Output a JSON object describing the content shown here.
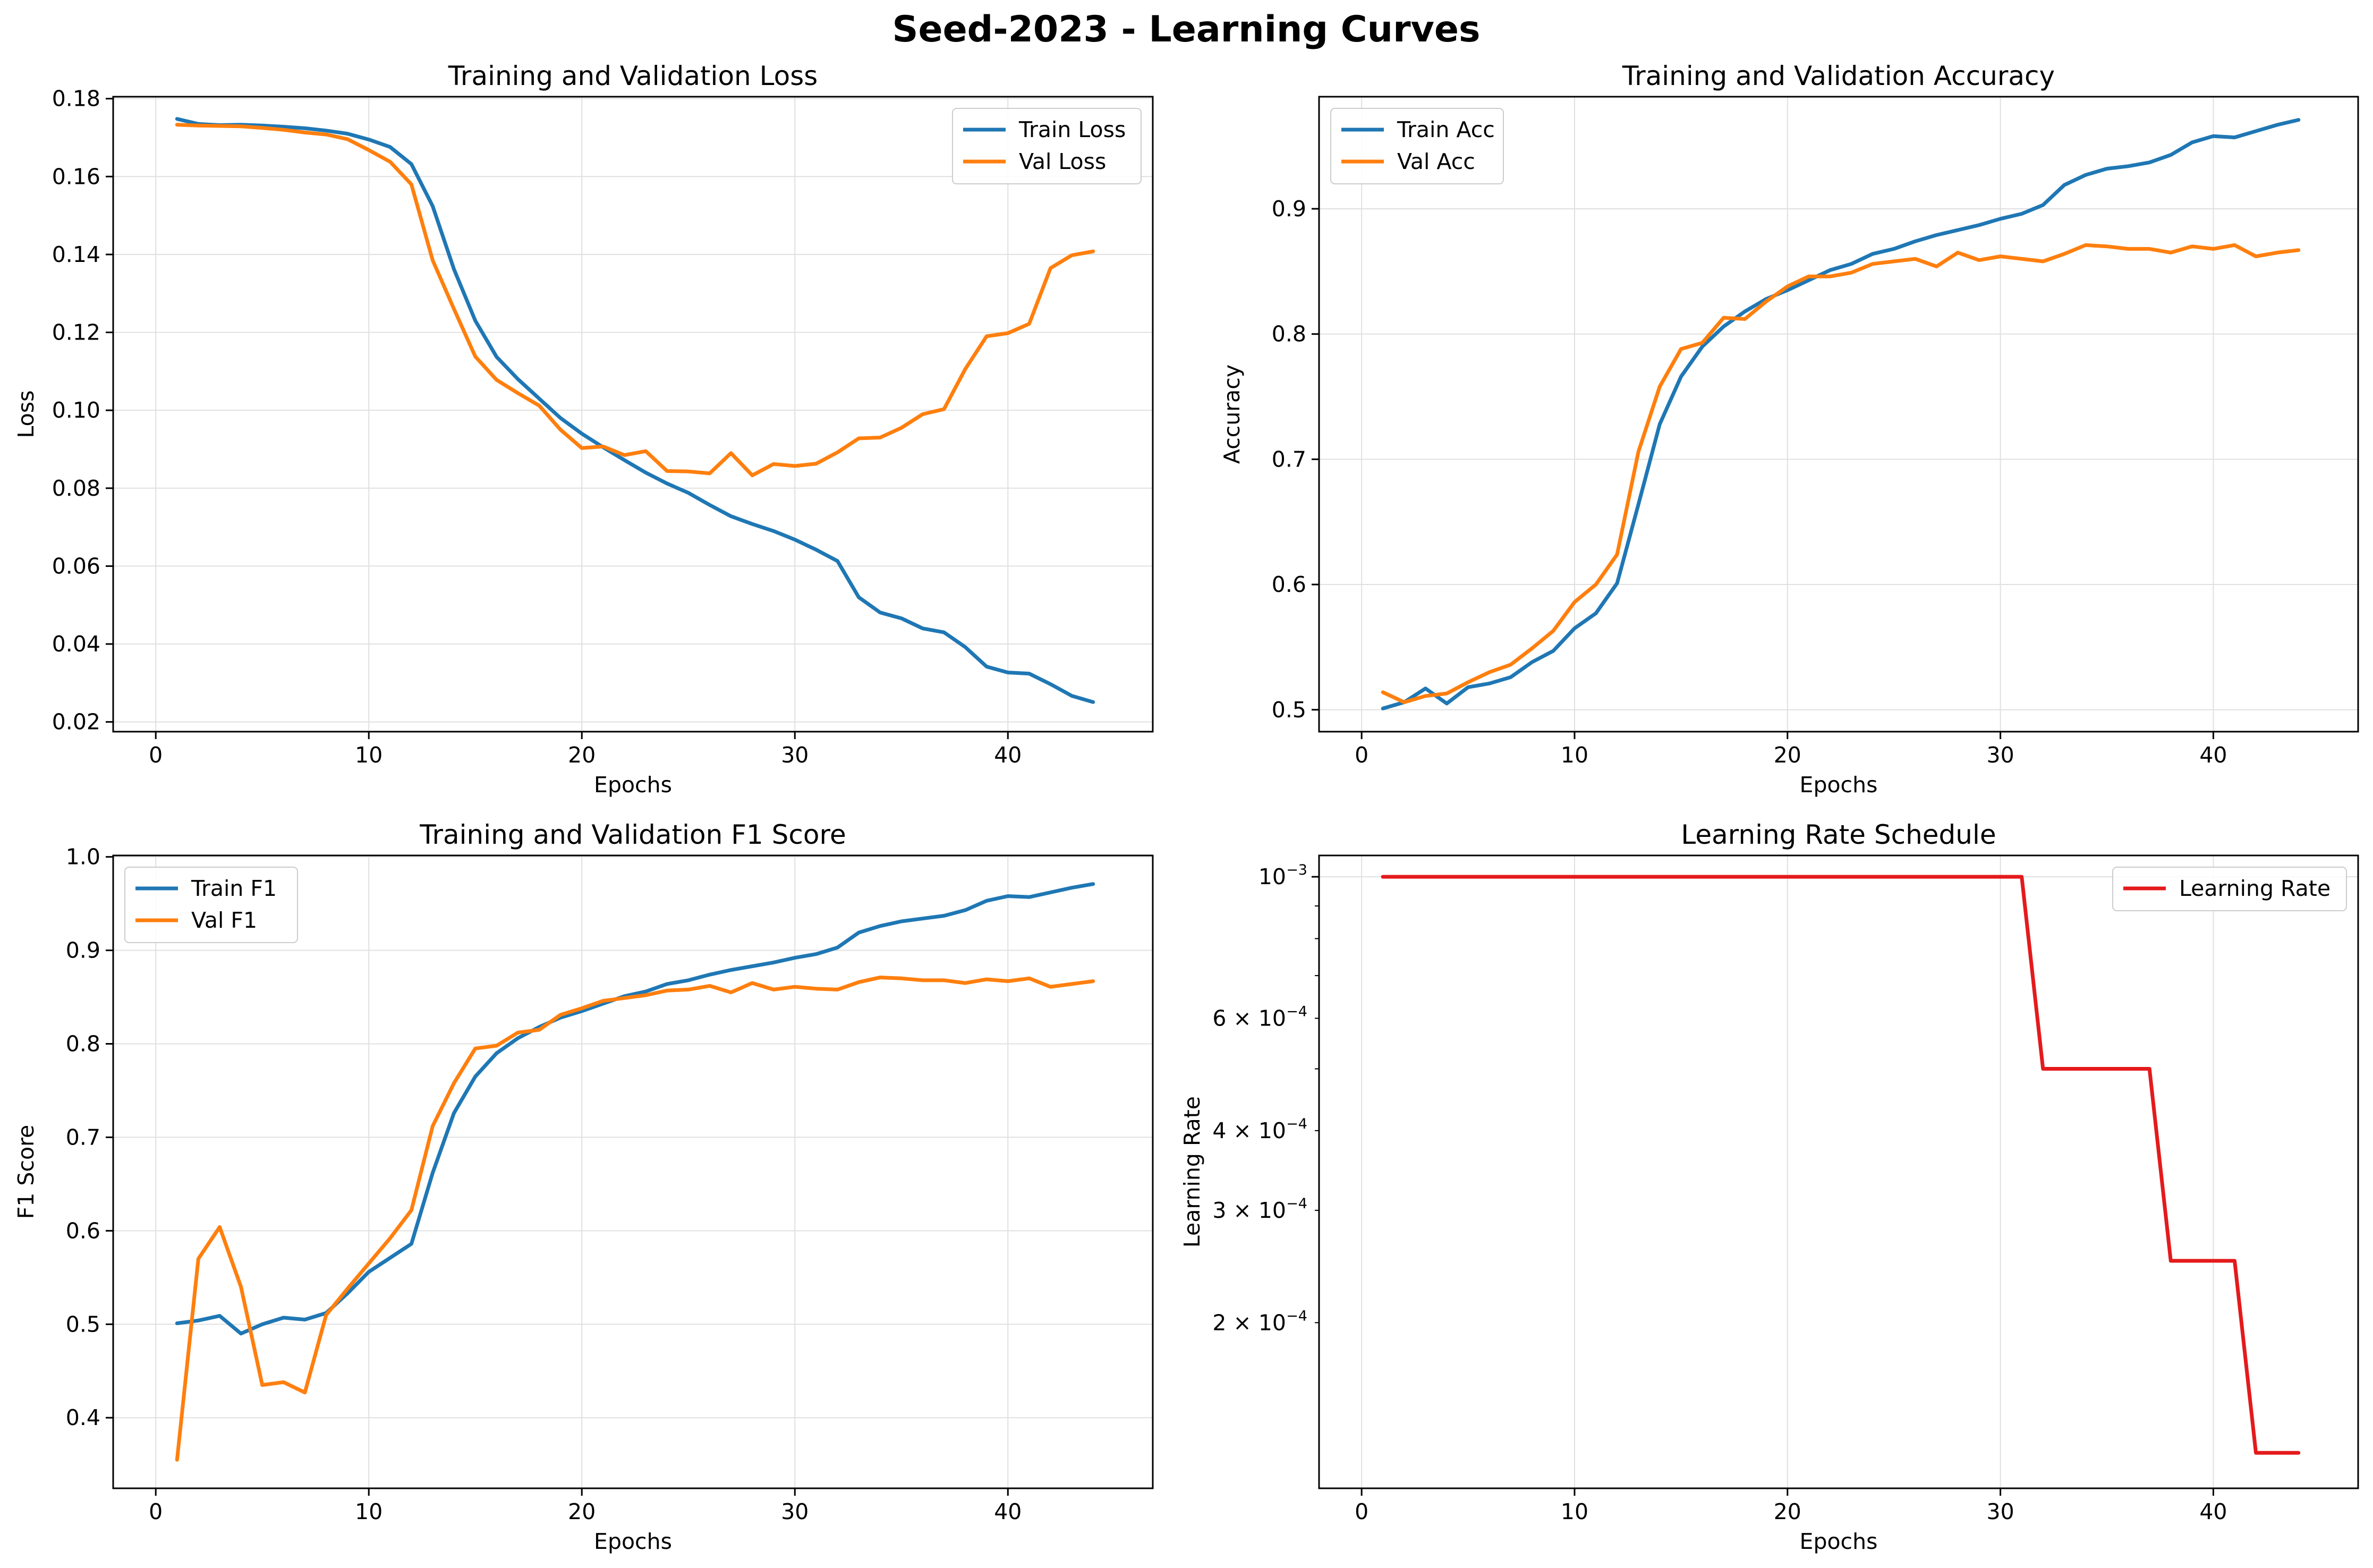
{
  "figure": {
    "title": "Seed-2023 - Learning Curves"
  },
  "colors": {
    "train": "#1f77b4",
    "val": "#ff7f0e",
    "lr": "#e41a1c",
    "grid": "#e0e0e0"
  },
  "chart_data": [
    {
      "id": "loss",
      "type": "line",
      "title": "Training and Validation Loss",
      "xlabel": "Epochs",
      "ylabel": "Loss",
      "xlim": [
        -2,
        46.8
      ],
      "ylim": [
        0.0175,
        0.1805
      ],
      "yscale": "linear",
      "xticks": [
        0,
        10,
        20,
        30,
        40
      ],
      "yticks": [
        0.02,
        0.04,
        0.06,
        0.08,
        0.1,
        0.12,
        0.14,
        0.16,
        0.18
      ],
      "ytick_labels": [
        "0.02",
        "0.04",
        "0.06",
        "0.08",
        "0.10",
        "0.12",
        "0.14",
        "0.16",
        "0.18"
      ],
      "grid": true,
      "legend": "upper right",
      "x": [
        1,
        2,
        3,
        4,
        5,
        6,
        7,
        8,
        9,
        10,
        11,
        12,
        13,
        14,
        15,
        16,
        17,
        18,
        19,
        20,
        21,
        22,
        23,
        24,
        25,
        26,
        27,
        28,
        29,
        30,
        31,
        32,
        33,
        34,
        35,
        36,
        37,
        38,
        39,
        40,
        41,
        42,
        43,
        44
      ],
      "series": [
        {
          "name": "Train Loss",
          "color_key": "train",
          "values": [
            0.1748,
            0.1735,
            0.1732,
            0.1733,
            0.1731,
            0.1728,
            0.1724,
            0.1718,
            0.171,
            0.1695,
            0.1676,
            0.1632,
            0.1524,
            0.1362,
            0.123,
            0.1137,
            0.108,
            0.103,
            0.098,
            0.094,
            0.0905,
            0.0872,
            0.084,
            0.0812,
            0.0788,
            0.0757,
            0.0728,
            0.0708,
            0.069,
            0.0668,
            0.0642,
            0.0613,
            0.052,
            0.0481,
            0.0466,
            0.044,
            0.043,
            0.0392,
            0.0342,
            0.0327,
            0.0324,
            0.0297,
            0.0267,
            0.0251
          ]
        },
        {
          "name": "Val Loss",
          "color_key": "val",
          "values": [
            0.1733,
            0.1731,
            0.173,
            0.1729,
            0.1725,
            0.172,
            0.1713,
            0.1708,
            0.1696,
            0.1668,
            0.1638,
            0.158,
            0.1385,
            0.126,
            0.1138,
            0.1078,
            0.1044,
            0.1012,
            0.095,
            0.0903,
            0.0907,
            0.0885,
            0.0895,
            0.0844,
            0.0843,
            0.0838,
            0.089,
            0.0833,
            0.0862,
            0.0857,
            0.0863,
            0.0892,
            0.0928,
            0.093,
            0.0955,
            0.099,
            0.1003,
            0.1106,
            0.119,
            0.1198,
            0.1222,
            0.1365,
            0.1398,
            0.1408
          ]
        }
      ]
    },
    {
      "id": "acc",
      "type": "line",
      "title": "Training and Validation Accuracy",
      "xlabel": "Epochs",
      "ylabel": "Accuracy",
      "xlim": [
        -2,
        46.8
      ],
      "ylim": [
        0.4825,
        0.9895
      ],
      "yscale": "linear",
      "xticks": [
        0,
        10,
        20,
        30,
        40
      ],
      "yticks": [
        0.5,
        0.6,
        0.7,
        0.8,
        0.9
      ],
      "ytick_labels": [
        "0.5",
        "0.6",
        "0.7",
        "0.8",
        "0.9"
      ],
      "grid": true,
      "legend": "upper left",
      "x": [
        1,
        2,
        3,
        4,
        5,
        6,
        7,
        8,
        9,
        10,
        11,
        12,
        13,
        14,
        15,
        16,
        17,
        18,
        19,
        20,
        21,
        22,
        23,
        24,
        25,
        26,
        27,
        28,
        29,
        30,
        31,
        32,
        33,
        34,
        35,
        36,
        37,
        38,
        39,
        40,
        41,
        42,
        43,
        44
      ],
      "series": [
        {
          "name": "Train Acc",
          "color_key": "train",
          "values": [
            0.501,
            0.506,
            0.517,
            0.505,
            0.518,
            0.521,
            0.526,
            0.538,
            0.547,
            0.565,
            0.577,
            0.601,
            0.664,
            0.728,
            0.766,
            0.79,
            0.806,
            0.818,
            0.828,
            0.835,
            0.843,
            0.851,
            0.856,
            0.864,
            0.868,
            0.874,
            0.879,
            0.883,
            0.887,
            0.892,
            0.896,
            0.903,
            0.919,
            0.927,
            0.932,
            0.934,
            0.937,
            0.943,
            0.953,
            0.958,
            0.957,
            0.962,
            0.967,
            0.971
          ]
        },
        {
          "name": "Val Acc",
          "color_key": "val",
          "values": [
            0.514,
            0.506,
            0.511,
            0.513,
            0.522,
            0.53,
            0.536,
            0.549,
            0.563,
            0.586,
            0.6,
            0.624,
            0.706,
            0.758,
            0.788,
            0.793,
            0.813,
            0.812,
            0.826,
            0.838,
            0.846,
            0.846,
            0.849,
            0.856,
            0.858,
            0.86,
            0.854,
            0.865,
            0.859,
            0.862,
            0.86,
            0.858,
            0.864,
            0.871,
            0.87,
            0.868,
            0.868,
            0.865,
            0.87,
            0.868,
            0.871,
            0.862,
            0.865,
            0.867
          ]
        }
      ]
    },
    {
      "id": "f1",
      "type": "line",
      "title": "Training and Validation F1 Score",
      "xlabel": "Epochs",
      "ylabel": "F1 Score",
      "xlim": [
        -2,
        46.8
      ],
      "ylim": [
        0.3245,
        1.0015
      ],
      "yscale": "linear",
      "xticks": [
        0,
        10,
        20,
        30,
        40
      ],
      "yticks": [
        0.4,
        0.5,
        0.6,
        0.7,
        0.8,
        0.9,
        1.0
      ],
      "ytick_labels": [
        "0.4",
        "0.5",
        "0.6",
        "0.7",
        "0.8",
        "0.9",
        "1.0"
      ],
      "grid": true,
      "legend": "upper left",
      "x": [
        1,
        2,
        3,
        4,
        5,
        6,
        7,
        8,
        9,
        10,
        11,
        12,
        13,
        14,
        15,
        16,
        17,
        18,
        19,
        20,
        21,
        22,
        23,
        24,
        25,
        26,
        27,
        28,
        29,
        30,
        31,
        32,
        33,
        34,
        35,
        36,
        37,
        38,
        39,
        40,
        41,
        42,
        43,
        44
      ],
      "series": [
        {
          "name": "Train F1",
          "color_key": "train",
          "values": [
            0.501,
            0.504,
            0.509,
            0.49,
            0.5,
            0.507,
            0.505,
            0.512,
            0.533,
            0.556,
            0.571,
            0.586,
            0.662,
            0.726,
            0.765,
            0.79,
            0.806,
            0.818,
            0.828,
            0.835,
            0.843,
            0.851,
            0.856,
            0.864,
            0.868,
            0.874,
            0.879,
            0.883,
            0.887,
            0.892,
            0.896,
            0.903,
            0.919,
            0.926,
            0.931,
            0.934,
            0.937,
            0.943,
            0.953,
            0.958,
            0.957,
            0.962,
            0.967,
            0.971
          ]
        },
        {
          "name": "Val F1",
          "color_key": "val",
          "values": [
            0.355,
            0.57,
            0.604,
            0.54,
            0.435,
            0.438,
            0.427,
            0.51,
            0.538,
            0.565,
            0.592,
            0.622,
            0.712,
            0.758,
            0.795,
            0.798,
            0.812,
            0.815,
            0.831,
            0.838,
            0.846,
            0.849,
            0.852,
            0.857,
            0.858,
            0.862,
            0.855,
            0.865,
            0.858,
            0.861,
            0.859,
            0.858,
            0.866,
            0.871,
            0.87,
            0.868,
            0.868,
            0.865,
            0.869,
            0.867,
            0.87,
            0.861,
            0.864,
            0.867
          ]
        }
      ]
    },
    {
      "id": "lr",
      "type": "line",
      "title": "Learning Rate Schedule",
      "xlabel": "Epochs",
      "ylabel": "Learning Rate",
      "xlim": [
        -2,
        46.8
      ],
      "ylim": [
        0.00011,
        0.00108
      ],
      "yscale": "log",
      "xticks": [
        0,
        10,
        20,
        30,
        40
      ],
      "yticks_major": [
        0.001
      ],
      "yticks_labeled": [
        {
          "value": 0.001,
          "base": "10",
          "exp": "−3"
        },
        {
          "value": 0.0006,
          "base": "6 × 10",
          "exp": "−4"
        },
        {
          "value": 0.0004,
          "base": "4 × 10",
          "exp": "−4"
        },
        {
          "value": 0.0003,
          "base": "3 × 10",
          "exp": "−4"
        },
        {
          "value": 0.0002,
          "base": "2 × 10",
          "exp": "−4"
        }
      ],
      "yticks_minor_unlabeled": [
        0.0005,
        0.0007,
        0.0008,
        0.0009
      ],
      "grid": true,
      "legend": "upper right",
      "x": [
        1,
        2,
        3,
        4,
        5,
        6,
        7,
        8,
        9,
        10,
        11,
        12,
        13,
        14,
        15,
        16,
        17,
        18,
        19,
        20,
        21,
        22,
        23,
        24,
        25,
        26,
        27,
        28,
        29,
        30,
        31,
        32,
        33,
        34,
        35,
        36,
        37,
        38,
        39,
        40,
        41,
        42,
        43,
        44
      ],
      "series": [
        {
          "name": "Learning Rate",
          "color_key": "lr",
          "values": [
            0.001,
            0.001,
            0.001,
            0.001,
            0.001,
            0.001,
            0.001,
            0.001,
            0.001,
            0.001,
            0.001,
            0.001,
            0.001,
            0.001,
            0.001,
            0.001,
            0.001,
            0.001,
            0.001,
            0.001,
            0.001,
            0.001,
            0.001,
            0.001,
            0.001,
            0.001,
            0.001,
            0.001,
            0.001,
            0.001,
            0.001,
            0.0005,
            0.0005,
            0.0005,
            0.0005,
            0.0005,
            0.0005,
            0.00025,
            0.00025,
            0.00025,
            0.00025,
            0.000125,
            0.000125,
            0.000125
          ]
        }
      ]
    }
  ]
}
